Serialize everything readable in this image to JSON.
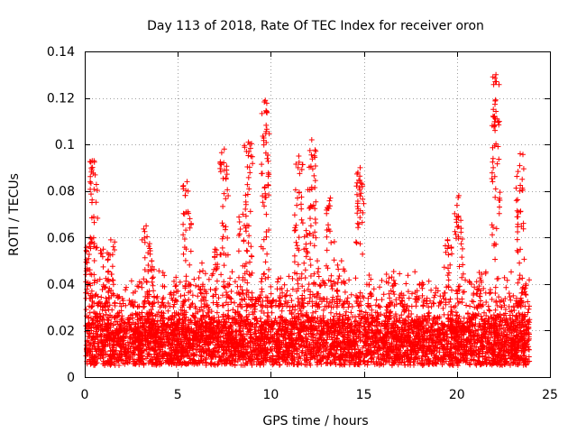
{
  "chart_data": {
    "type": "scatter",
    "title": "Day 113 of 2018, Rate Of TEC Index for receiver oron",
    "xlabel": "GPS time / hours",
    "ylabel": "ROTI / TECUs",
    "xlim": [
      0,
      25
    ],
    "ylim": [
      0,
      0.14
    ],
    "xticks": [
      "0",
      "5",
      "10",
      "15",
      "20",
      "25"
    ],
    "yticks": [
      "0",
      "0.02",
      "0.04",
      "0.06",
      "0.08",
      "0.1",
      "0.12",
      "0.14"
    ],
    "grid": true,
    "marker": "+",
    "series_color": "#ff0000",
    "data_range_x": [
      0,
      23.9
    ],
    "baseline_band": [
      0.005,
      0.03
    ],
    "spikes": [
      {
        "x": 0.1,
        "max": 0.054
      },
      {
        "x": 0.3,
        "max": 0.06
      },
      {
        "x": 0.5,
        "max": 0.093
      },
      {
        "x": 1.0,
        "max": 0.055
      },
      {
        "x": 1.4,
        "max": 0.059
      },
      {
        "x": 3.3,
        "max": 0.065
      },
      {
        "x": 3.6,
        "max": 0.05
      },
      {
        "x": 5.5,
        "max": 0.084
      },
      {
        "x": 6.3,
        "max": 0.049
      },
      {
        "x": 7.0,
        "max": 0.055
      },
      {
        "x": 7.5,
        "max": 0.098
      },
      {
        "x": 8.5,
        "max": 0.07
      },
      {
        "x": 8.8,
        "max": 0.101
      },
      {
        "x": 9.7,
        "max": 0.119
      },
      {
        "x": 11.5,
        "max": 0.095
      },
      {
        "x": 11.9,
        "max": 0.063
      },
      {
        "x": 12.2,
        "max": 0.102
      },
      {
        "x": 12.5,
        "max": 0.05
      },
      {
        "x": 13.2,
        "max": 0.077
      },
      {
        "x": 13.8,
        "max": 0.05
      },
      {
        "x": 14.8,
        "max": 0.09
      },
      {
        "x": 16.5,
        "max": 0.043
      },
      {
        "x": 18.0,
        "max": 0.04
      },
      {
        "x": 19.5,
        "max": 0.059
      },
      {
        "x": 20.1,
        "max": 0.078
      },
      {
        "x": 21.2,
        "max": 0.045
      },
      {
        "x": 22.1,
        "max": 0.13
      },
      {
        "x": 23.4,
        "max": 0.096
      },
      {
        "x": 23.7,
        "max": 0.04
      }
    ]
  }
}
